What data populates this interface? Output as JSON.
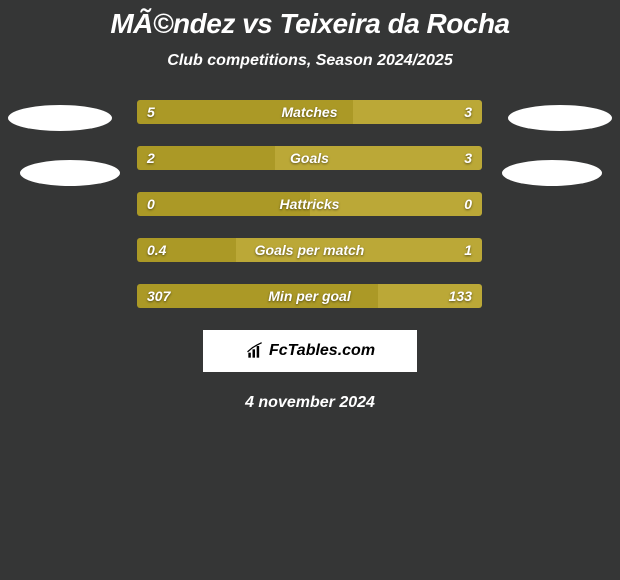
{
  "title": "MÃ©ndez vs Teixeira da Rocha",
  "subtitle": "Club competitions, Season 2024/2025",
  "date": "4 november 2024",
  "logo": {
    "brand": "FcTables",
    "suffix": ".com"
  },
  "colors": {
    "background": "#353636",
    "bar_left": "#ab9926",
    "bar_right": "#bba837",
    "oval": "#ffffff",
    "text": "#ffffff"
  },
  "rows": [
    {
      "label": "Matches",
      "left": "5",
      "right": "3",
      "left_pct": 62.5
    },
    {
      "label": "Goals",
      "left": "2",
      "right": "3",
      "left_pct": 40.0
    },
    {
      "label": "Hattricks",
      "left": "0",
      "right": "0",
      "left_pct": 50.0
    },
    {
      "label": "Goals per match",
      "left": "0.4",
      "right": "1",
      "left_pct": 28.6
    },
    {
      "label": "Min per goal",
      "left": "307",
      "right": "133",
      "left_pct": 69.8
    }
  ]
}
